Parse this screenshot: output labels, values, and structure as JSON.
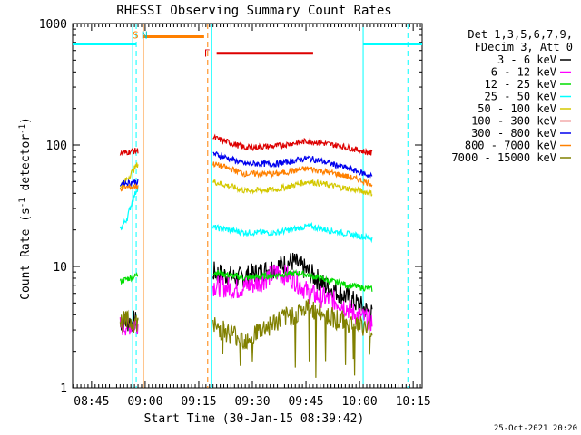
{
  "chart_data": {
    "type": "line",
    "title": "RHESSI Observing Summary Count Rates",
    "xlabel": "Start Time (30-Jan-15 08:39:42)",
    "ylabel": "Count Rate (s⁻¹ detector⁻¹)",
    "ylabel_base": "Count Rate (s",
    "ylabel_sup1": "-1",
    "ylabel_mid": " detector",
    "ylabel_sup2": "-1",
    "ylabel_end": ")",
    "y_scale": "log",
    "ylim": [
      1,
      1000
    ],
    "xlim": [
      "08:39:42",
      "10:17:30"
    ],
    "x_ticks": [
      "08:45",
      "09:00",
      "09:15",
      "09:30",
      "09:45",
      "10:00",
      "10:15"
    ],
    "y_ticks": [
      "1",
      "10",
      "100",
      "1000"
    ],
    "timestamp": "25-Oct-2021 20:20",
    "legend": {
      "position": "right",
      "header": [
        "Det 1,3,5,6,7,9,",
        "FDecim 3, Att 0"
      ],
      "entries": [
        {
          "label": "3 - 6 keV",
          "color": "#000000"
        },
        {
          "label": "6 - 12 keV",
          "color": "#ff00ff"
        },
        {
          "label": "12 - 25 keV",
          "color": "#00dd00"
        },
        {
          "label": "25 - 50 keV",
          "color": "#00ffff"
        },
        {
          "label": "50 - 100 keV",
          "color": "#d4c800"
        },
        {
          "label": "100 - 300 keV",
          "color": "#dd0000"
        },
        {
          "label": "300 - 800 keV",
          "color": "#0000ee"
        },
        {
          "label": "800 - 7000 keV",
          "color": "#ff8000"
        },
        {
          "label": "7000 - 15000 keV",
          "color": "#808000"
        }
      ]
    },
    "markers": [
      {
        "label": "S",
        "color": "#ff8000",
        "time": "08:58"
      },
      {
        "label": "N",
        "color": "#00cccc",
        "time": "08:59"
      },
      {
        "label": "F",
        "color": "#dd0000",
        "time": "09:18"
      }
    ],
    "flags": [
      {
        "name": "night",
        "color": "#00ffff",
        "y": 680,
        "start": "08:39:42",
        "end": "08:57:30"
      },
      {
        "name": "saa",
        "color": "#ff8000",
        "y": 780,
        "start": "08:59:30",
        "end": "09:16:30"
      },
      {
        "name": "flare",
        "color": "#dd0000",
        "y": 570,
        "start": "09:20:00",
        "end": "09:47:00"
      },
      {
        "name": "night",
        "color": "#00ffff",
        "y": 680,
        "start": "10:01:00",
        "end": "10:17:30"
      }
    ],
    "vlines": [
      {
        "time": "08:56:30",
        "color": "#00ffff",
        "style": "solid"
      },
      {
        "time": "08:57:30",
        "color": "#00ffff",
        "style": "dashed"
      },
      {
        "time": "08:59:30",
        "color": "#ff8000",
        "style": "solid"
      },
      {
        "time": "09:17:30",
        "color": "#ff8000",
        "style": "dashed"
      },
      {
        "time": "09:18:30",
        "color": "#00ffff",
        "style": "solid"
      },
      {
        "time": "10:01:00",
        "color": "#00ffff",
        "style": "solid"
      },
      {
        "time": "10:13:30",
        "color": "#00ffff",
        "style": "dashed"
      }
    ],
    "segments": [
      {
        "start": "08:53:00",
        "end": "08:58:00"
      },
      {
        "start": "09:19:00",
        "end": "10:03:30"
      }
    ],
    "series": [
      {
        "name": "3 - 6 keV",
        "color": "#000000",
        "seg1": [
          [
            0,
            3.5
          ],
          [
            1,
            3.5
          ]
        ],
        "seg2": [
          [
            0,
            9
          ],
          [
            0.15,
            8
          ],
          [
            0.3,
            9
          ],
          [
            0.4,
            10
          ],
          [
            0.5,
            11
          ],
          [
            0.6,
            9
          ],
          [
            0.7,
            7
          ],
          [
            0.8,
            6
          ],
          [
            0.9,
            5
          ],
          [
            1,
            4
          ]
        ]
      },
      {
        "name": "6 - 12 keV",
        "color": "#ff00ff",
        "seg1": [
          [
            0,
            3.2
          ],
          [
            1,
            3.4
          ]
        ],
        "seg2": [
          [
            0,
            7
          ],
          [
            0.15,
            6.5
          ],
          [
            0.3,
            7.5
          ],
          [
            0.4,
            9
          ],
          [
            0.5,
            8
          ],
          [
            0.6,
            6
          ],
          [
            0.7,
            5.5
          ],
          [
            0.8,
            5
          ],
          [
            0.9,
            4
          ],
          [
            1,
            3.5
          ]
        ]
      },
      {
        "name": "12 - 25 keV",
        "color": "#00dd00",
        "seg1": [
          [
            0,
            7.5
          ],
          [
            1,
            8.5
          ]
        ],
        "seg2": [
          [
            0,
            9
          ],
          [
            0.2,
            8
          ],
          [
            0.4,
            8.5
          ],
          [
            0.55,
            8.8
          ],
          [
            0.7,
            7.8
          ],
          [
            0.85,
            7
          ],
          [
            1,
            6.5
          ]
        ]
      },
      {
        "name": "25 - 50 keV",
        "color": "#00ffff",
        "seg1": [
          [
            0,
            20
          ],
          [
            0.4,
            25
          ],
          [
            0.7,
            35
          ],
          [
            1,
            45
          ]
        ],
        "seg2": [
          [
            0,
            21
          ],
          [
            0.2,
            19
          ],
          [
            0.4,
            19
          ],
          [
            0.6,
            21.5
          ],
          [
            0.8,
            19
          ],
          [
            1,
            17
          ]
        ]
      },
      {
        "name": "50 - 100 keV",
        "color": "#d4c800",
        "seg1": [
          [
            0,
            45
          ],
          [
            0.5,
            55
          ],
          [
            1,
            70
          ]
        ],
        "seg2": [
          [
            0,
            50
          ],
          [
            0.2,
            42
          ],
          [
            0.4,
            43
          ],
          [
            0.6,
            50
          ],
          [
            0.8,
            45
          ],
          [
            1,
            40
          ]
        ]
      },
      {
        "name": "100 - 300 keV",
        "color": "#dd0000",
        "seg1": [
          [
            0,
            85
          ],
          [
            0.5,
            88
          ],
          [
            1,
            90
          ]
        ],
        "seg2": [
          [
            0,
            115
          ],
          [
            0.2,
            95
          ],
          [
            0.4,
            98
          ],
          [
            0.6,
            108
          ],
          [
            0.8,
            98
          ],
          [
            1,
            85
          ]
        ]
      },
      {
        "name": "300 - 800 keV",
        "color": "#0000ee",
        "seg1": [
          [
            0,
            48
          ],
          [
            1,
            50
          ]
        ],
        "seg2": [
          [
            0,
            85
          ],
          [
            0.2,
            70
          ],
          [
            0.4,
            70
          ],
          [
            0.6,
            78
          ],
          [
            0.8,
            67
          ],
          [
            1,
            55
          ]
        ]
      },
      {
        "name": "800 - 7000 keV",
        "color": "#ff8000",
        "seg1": [
          [
            0,
            44
          ],
          [
            1,
            46
          ]
        ],
        "seg2": [
          [
            0,
            70
          ],
          [
            0.2,
            58
          ],
          [
            0.4,
            58
          ],
          [
            0.6,
            64
          ],
          [
            0.8,
            57
          ],
          [
            1,
            48
          ]
        ]
      },
      {
        "name": "7000 - 15000 keV",
        "color": "#808000",
        "seg1": [
          [
            0,
            3.5
          ],
          [
            1,
            3.5
          ]
        ],
        "seg2": [
          [
            0,
            3.2
          ],
          [
            0.2,
            2.5
          ],
          [
            0.4,
            3.5
          ],
          [
            0.6,
            4.5
          ],
          [
            0.8,
            3.6
          ],
          [
            1,
            3
          ]
        ]
      }
    ]
  }
}
